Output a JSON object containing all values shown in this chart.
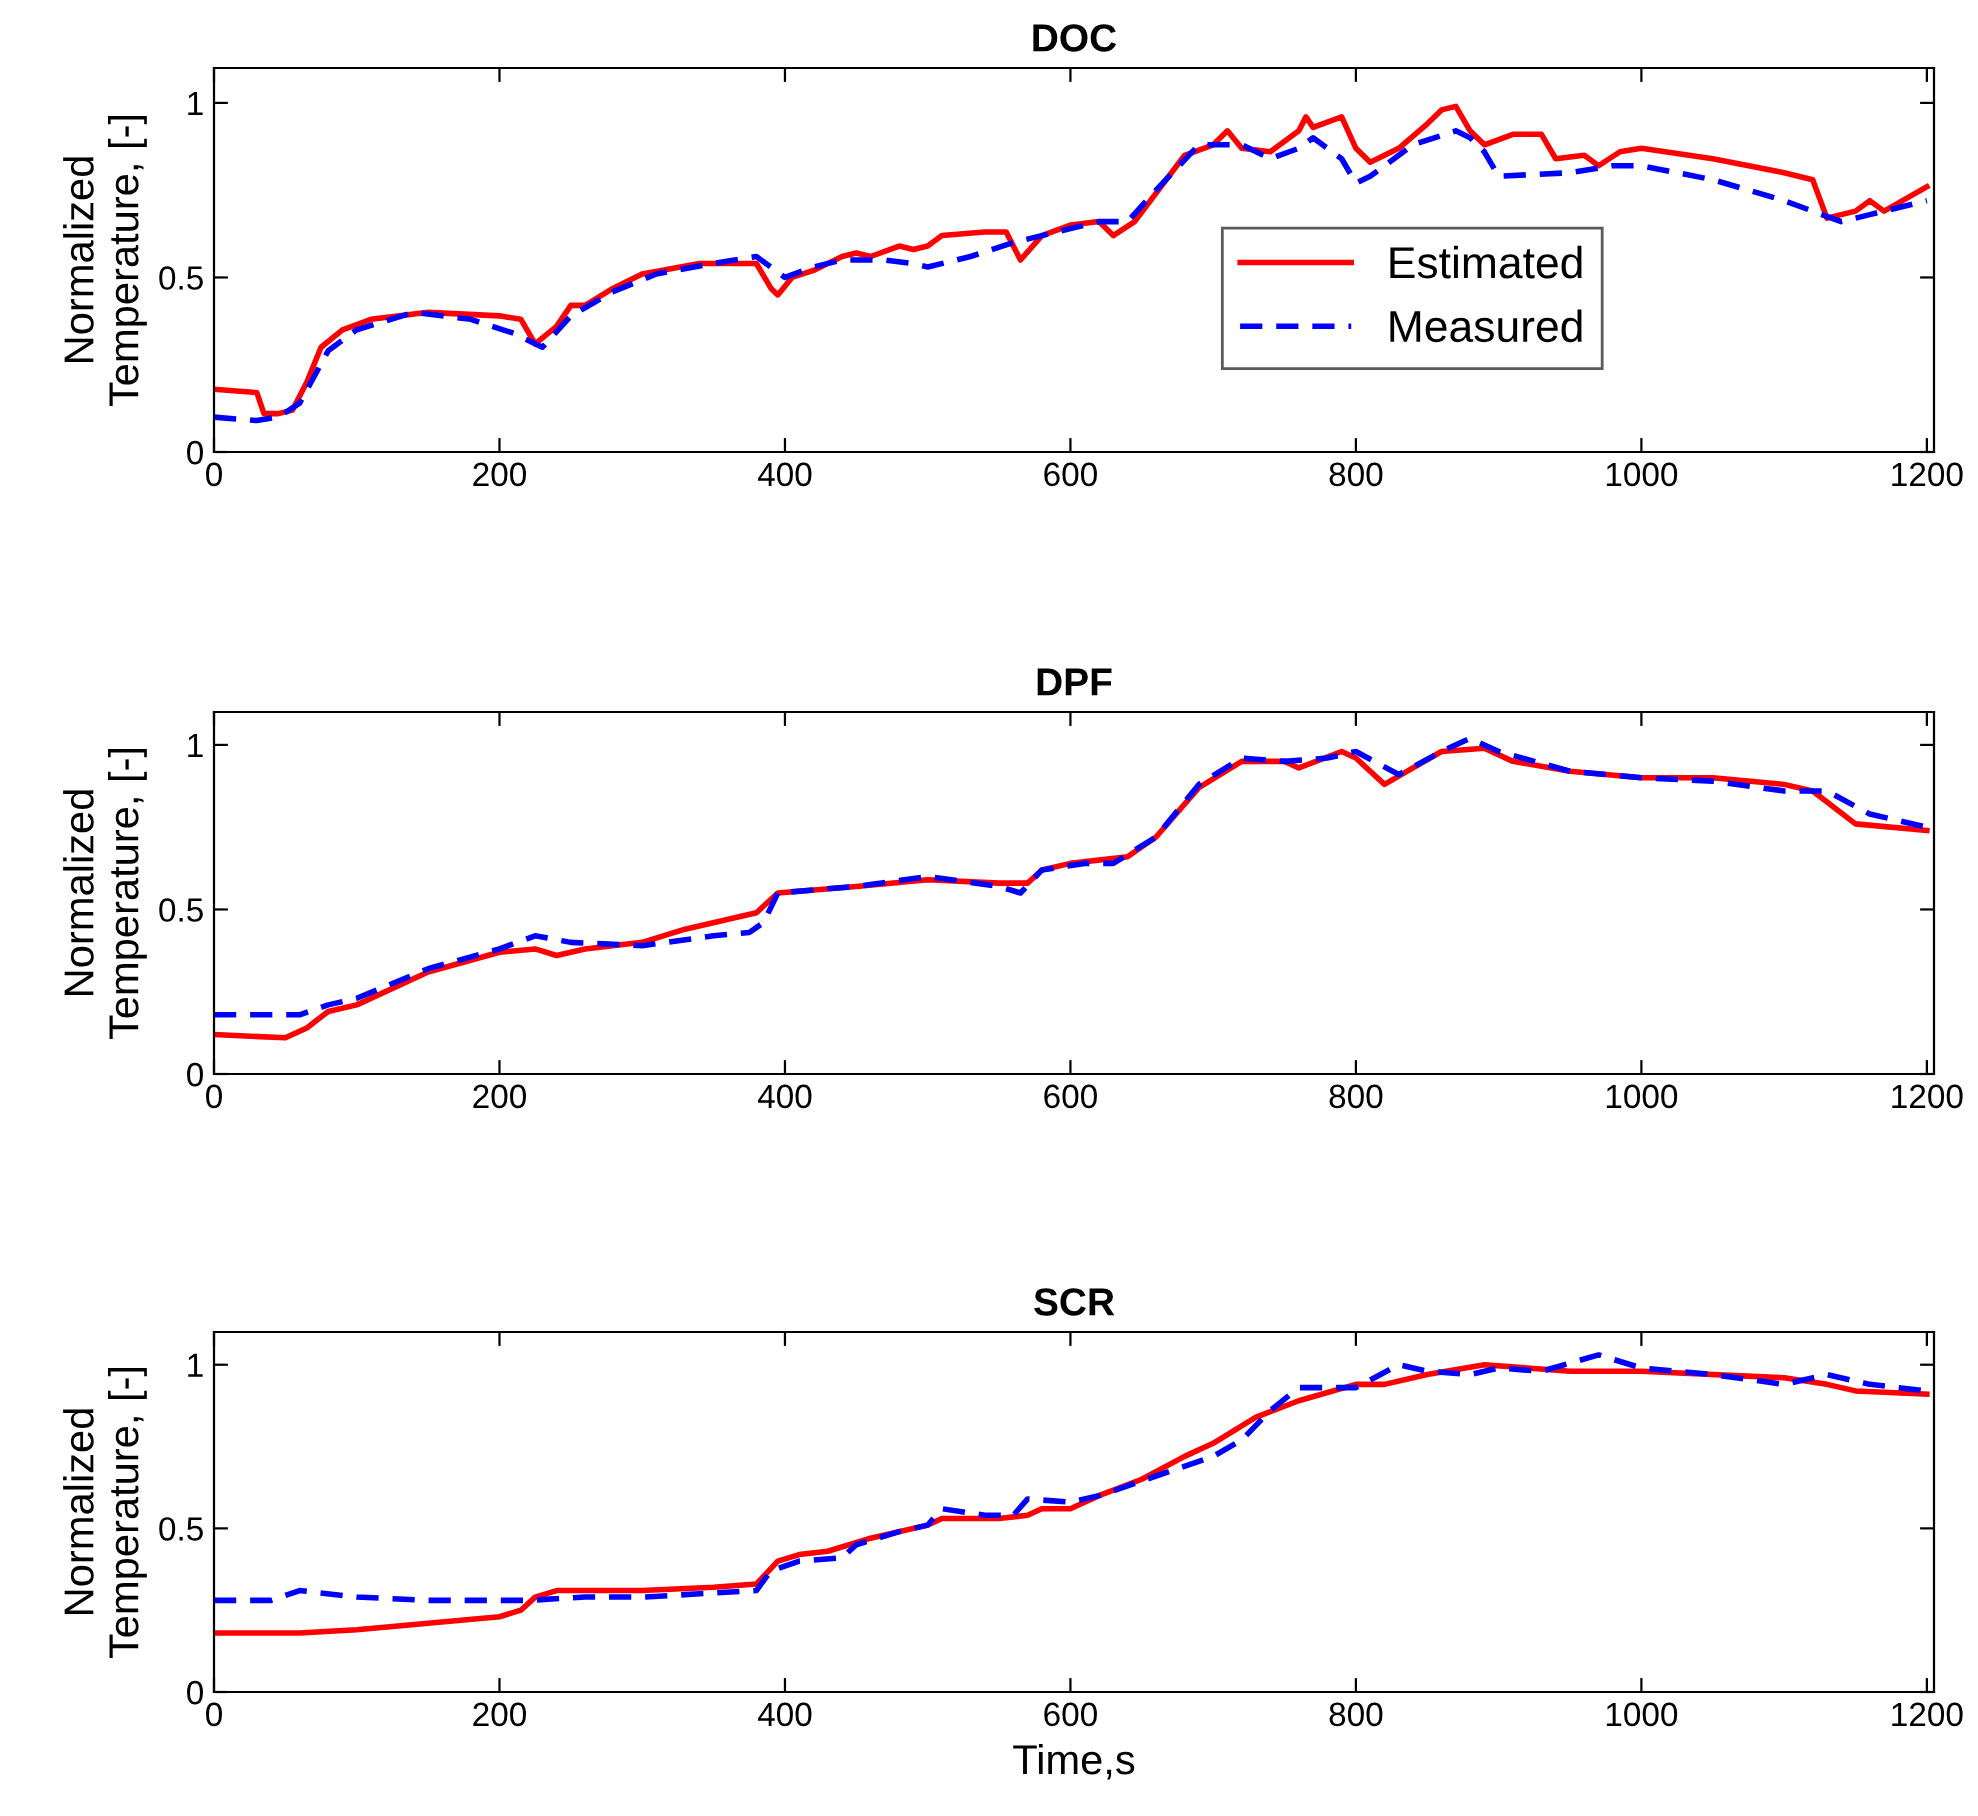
{
  "chart_data": [
    {
      "type": "line",
      "title": "DOC",
      "ylabel": "Normalized\nTemperature, [-]",
      "xlim": [
        0,
        1205
      ],
      "xticks": [
        0,
        200,
        400,
        600,
        800,
        1000,
        1200
      ],
      "ylim": [
        0,
        1.1
      ],
      "yticks": [
        0,
        0.5,
        1
      ],
      "legend": "right",
      "series": [
        {
          "name": "Estimated",
          "color": "#ff0000",
          "line_style": "solid",
          "x": [
            0,
            30,
            35,
            45,
            55,
            65,
            75,
            90,
            110,
            150,
            200,
            215,
            225,
            240,
            250,
            260,
            280,
            300,
            340,
            380,
            390,
            395,
            405,
            420,
            440,
            450,
            460,
            480,
            490,
            500,
            510,
            540,
            555,
            565,
            580,
            600,
            620,
            630,
            645,
            680,
            700,
            710,
            720,
            740,
            760,
            765,
            770,
            790,
            800,
            810,
            830,
            850,
            860,
            870,
            880,
            890,
            910,
            930,
            940,
            960,
            970,
            985,
            1000,
            1050,
            1100,
            1120,
            1130,
            1150,
            1160,
            1170,
            1200
          ],
          "values": [
            0.18,
            0.17,
            0.11,
            0.11,
            0.12,
            0.2,
            0.3,
            0.35,
            0.38,
            0.4,
            0.39,
            0.38,
            0.31,
            0.36,
            0.42,
            0.42,
            0.47,
            0.51,
            0.54,
            0.54,
            0.47,
            0.45,
            0.5,
            0.52,
            0.56,
            0.57,
            0.56,
            0.59,
            0.58,
            0.59,
            0.62,
            0.63,
            0.63,
            0.55,
            0.62,
            0.65,
            0.66,
            0.62,
            0.66,
            0.85,
            0.88,
            0.92,
            0.87,
            0.86,
            0.92,
            0.96,
            0.93,
            0.96,
            0.87,
            0.83,
            0.87,
            0.94,
            0.98,
            0.99,
            0.92,
            0.88,
            0.91,
            0.91,
            0.84,
            0.85,
            0.82,
            0.86,
            0.87,
            0.84,
            0.8,
            0.78,
            0.67,
            0.69,
            0.72,
            0.69,
            0.76
          ]
        },
        {
          "name": "Measured",
          "color": "#0000ff",
          "line_style": "dashed",
          "x": [
            0,
            30,
            45,
            60,
            80,
            100,
            140,
            180,
            210,
            230,
            250,
            280,
            310,
            350,
            380,
            400,
            420,
            440,
            470,
            490,
            500,
            530,
            560,
            600,
            620,
            640,
            660,
            690,
            720,
            740,
            760,
            770,
            790,
            800,
            810,
            840,
            870,
            880,
            890,
            900,
            950,
            980,
            1000,
            1050,
            1100,
            1140,
            1160,
            1200
          ],
          "values": [
            0.1,
            0.09,
            0.1,
            0.14,
            0.29,
            0.35,
            0.4,
            0.38,
            0.34,
            0.3,
            0.39,
            0.46,
            0.51,
            0.54,
            0.56,
            0.5,
            0.53,
            0.55,
            0.55,
            0.54,
            0.53,
            0.56,
            0.6,
            0.64,
            0.66,
            0.66,
            0.75,
            0.88,
            0.88,
            0.84,
            0.87,
            0.9,
            0.84,
            0.77,
            0.79,
            0.88,
            0.92,
            0.9,
            0.86,
            0.79,
            0.8,
            0.82,
            0.82,
            0.78,
            0.72,
            0.66,
            0.68,
            0.72
          ]
        }
      ]
    },
    {
      "type": "line",
      "title": "DPF",
      "ylabel": "Normalized\nTemperature, [-]",
      "xlim": [
        0,
        1205
      ],
      "xticks": [
        0,
        200,
        400,
        600,
        800,
        1000,
        1200
      ],
      "ylim": [
        0,
        1.1
      ],
      "yticks": [
        0,
        0.5,
        1
      ],
      "series": [
        {
          "color": "#ff0000",
          "line_style": "solid",
          "x": [
            0,
            50,
            65,
            80,
            100,
            150,
            200,
            225,
            240,
            260,
            300,
            330,
            380,
            395,
            450,
            500,
            550,
            570,
            580,
            600,
            640,
            660,
            690,
            720,
            750,
            760,
            790,
            800,
            820,
            840,
            860,
            890,
            910,
            950,
            1000,
            1050,
            1100,
            1120,
            1150,
            1200
          ],
          "values": [
            0.12,
            0.11,
            0.14,
            0.19,
            0.21,
            0.31,
            0.37,
            0.38,
            0.36,
            0.38,
            0.4,
            0.44,
            0.49,
            0.55,
            0.57,
            0.59,
            0.58,
            0.58,
            0.62,
            0.64,
            0.66,
            0.72,
            0.87,
            0.95,
            0.95,
            0.93,
            0.98,
            0.96,
            0.88,
            0.93,
            0.98,
            0.99,
            0.95,
            0.92,
            0.9,
            0.9,
            0.88,
            0.86,
            0.76,
            0.74
          ]
        },
        {
          "color": "#0000ff",
          "line_style": "dashed",
          "x": [
            0,
            60,
            80,
            100,
            150,
            200,
            225,
            250,
            300,
            350,
            375,
            385,
            395,
            450,
            500,
            550,
            565,
            580,
            610,
            630,
            660,
            690,
            720,
            750,
            780,
            800,
            830,
            860,
            880,
            900,
            950,
            1000,
            1050,
            1100,
            1130,
            1160,
            1200
          ],
          "values": [
            0.18,
            0.18,
            0.21,
            0.23,
            0.32,
            0.38,
            0.42,
            0.4,
            0.39,
            0.42,
            0.43,
            0.46,
            0.55,
            0.57,
            0.6,
            0.57,
            0.55,
            0.62,
            0.64,
            0.64,
            0.72,
            0.88,
            0.96,
            0.95,
            0.96,
            0.98,
            0.91,
            0.98,
            1.02,
            0.98,
            0.92,
            0.9,
            0.89,
            0.86,
            0.86,
            0.79,
            0.75
          ]
        }
      ]
    },
    {
      "type": "line",
      "title": "SCR",
      "xlabel": "Time,s",
      "ylabel": "Normalized\nTemperature, [-]",
      "xlim": [
        0,
        1205
      ],
      "xticks": [
        0,
        200,
        400,
        600,
        800,
        1000,
        1200
      ],
      "ylim": [
        0,
        1.1
      ],
      "yticks": [
        0,
        0.5,
        1
      ],
      "series": [
        {
          "color": "#ff0000",
          "line_style": "solid",
          "x": [
            0,
            60,
            100,
            150,
            200,
            215,
            225,
            240,
            300,
            350,
            380,
            395,
            410,
            430,
            460,
            500,
            510,
            550,
            570,
            580,
            600,
            620,
            650,
            680,
            700,
            730,
            760,
            800,
            820,
            850,
            890,
            920,
            950,
            1000,
            1100,
            1130,
            1150,
            1200
          ],
          "values": [
            0.18,
            0.18,
            0.19,
            0.21,
            0.23,
            0.25,
            0.29,
            0.31,
            0.31,
            0.32,
            0.33,
            0.4,
            0.42,
            0.43,
            0.47,
            0.51,
            0.53,
            0.53,
            0.54,
            0.56,
            0.56,
            0.6,
            0.65,
            0.72,
            0.76,
            0.84,
            0.89,
            0.94,
            0.94,
            0.97,
            1.0,
            0.99,
            0.98,
            0.98,
            0.96,
            0.94,
            0.92,
            0.91
          ]
        },
        {
          "color": "#0000ff",
          "line_style": "dashed",
          "x": [
            0,
            40,
            60,
            100,
            150,
            220,
            260,
            300,
            380,
            390,
            410,
            440,
            450,
            480,
            500,
            510,
            540,
            560,
            570,
            600,
            620,
            660,
            700,
            720,
            740,
            760,
            800,
            830,
            850,
            880,
            900,
            930,
            970,
            1000,
            1050,
            1100,
            1130,
            1160,
            1200
          ],
          "values": [
            0.28,
            0.28,
            0.31,
            0.29,
            0.28,
            0.28,
            0.29,
            0.29,
            0.31,
            0.37,
            0.4,
            0.41,
            0.45,
            0.49,
            0.51,
            0.56,
            0.54,
            0.54,
            0.59,
            0.58,
            0.6,
            0.66,
            0.72,
            0.77,
            0.86,
            0.93,
            0.93,
            1.0,
            0.98,
            0.97,
            0.99,
            0.98,
            1.03,
            0.99,
            0.97,
            0.94,
            0.97,
            0.94,
            0.92
          ]
        }
      ]
    }
  ]
}
